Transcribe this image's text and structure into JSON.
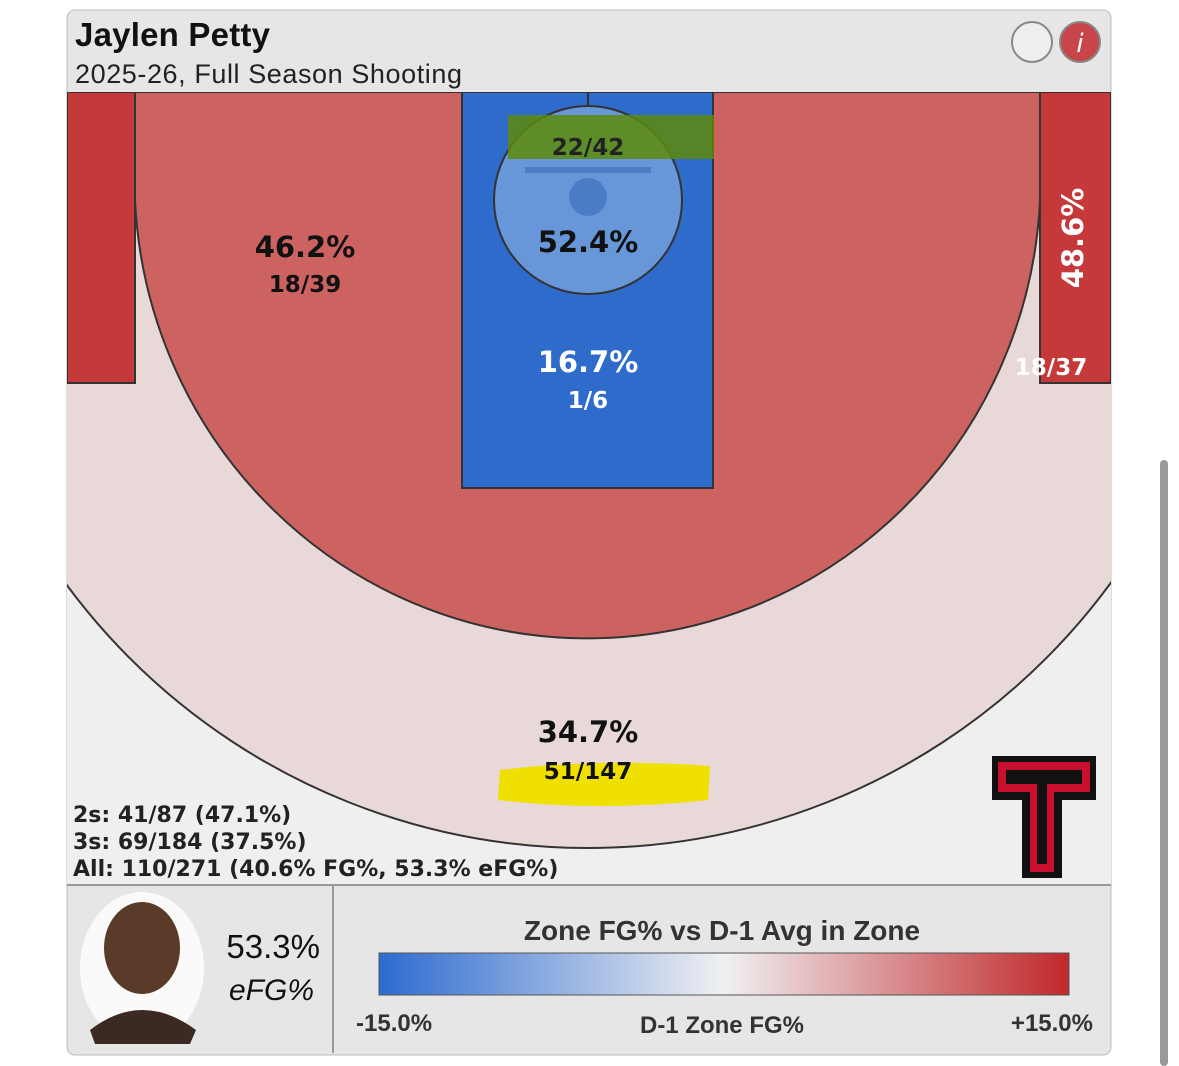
{
  "header": {
    "title": "Jaylen Petty",
    "subtitle": "2025-26, Full Season Shooting",
    "info_icon": "i"
  },
  "zones": [
    {
      "pct": "46.2%",
      "made_att": "18/39"
    },
    {
      "pct": "52.4%",
      "made_att": "22/42"
    },
    {
      "pct": "16.7%",
      "made_att": "1/6"
    },
    {
      "pct": "48.6%",
      "made_att": "18/37"
    },
    {
      "pct": "34.7%",
      "made_att": "51/147"
    }
  ],
  "summary": [
    "2s: 41/87 (47.1%)",
    "3s: 69/184 (37.5%)",
    "All: 110/271 (40.6% FG%, 53.3% eFG%)"
  ],
  "player": {
    "efg": "53.3%",
    "efg_label": "eFG%"
  },
  "legend": {
    "title": "Zone FG% vs D-1 Avg in Zone",
    "min": "-15.0%",
    "center": "D-1 Zone FG%",
    "max": "+15.0%"
  }
}
